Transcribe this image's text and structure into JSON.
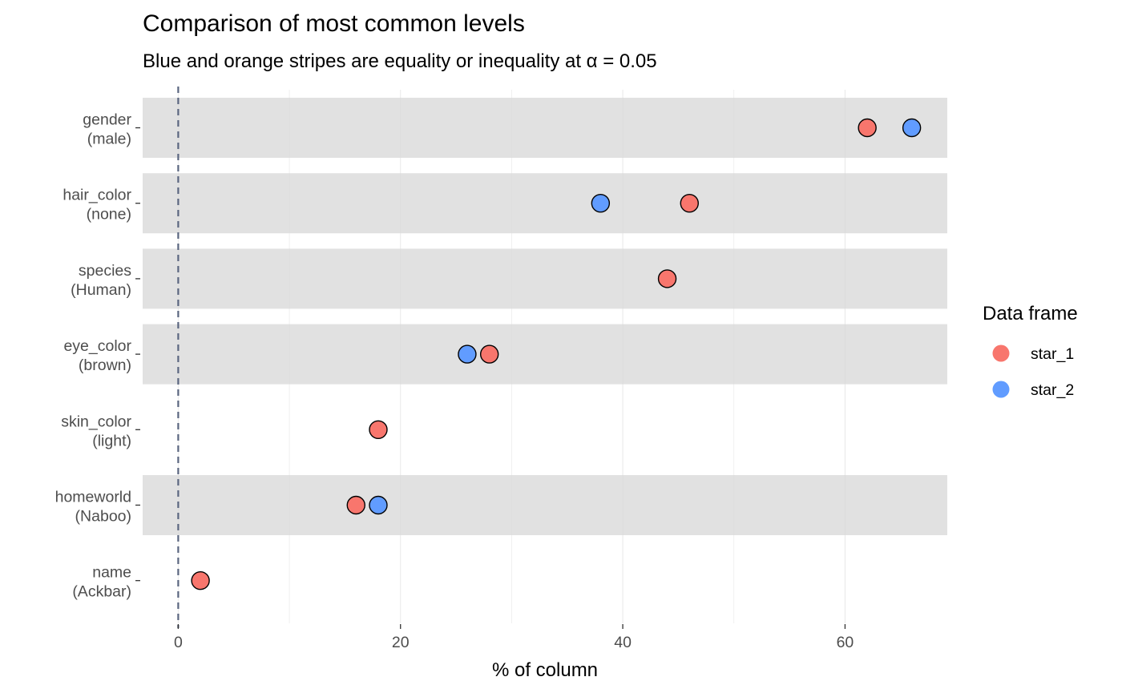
{
  "chart_data": {
    "type": "scatter",
    "title": "Comparison of most common levels",
    "subtitle": "Blue and orange stripes are equality or inequality at α = 0.05",
    "xlabel": "% of column",
    "ylabel": "",
    "xlim": [
      -3.2,
      69.2
    ],
    "x_ticks": [
      0,
      20,
      40,
      60
    ],
    "categories": [
      {
        "line1": "gender",
        "line2": "(male)"
      },
      {
        "line1": "hair_color",
        "line2": "(none)"
      },
      {
        "line1": "species",
        "line2": "(Human)"
      },
      {
        "line1": "eye_color",
        "line2": "(brown)"
      },
      {
        "line1": "skin_color",
        "line2": "(light)"
      },
      {
        "line1": "homeworld",
        "line2": "(Naboo)"
      },
      {
        "line1": "name",
        "line2": "(Ackbar)"
      }
    ],
    "stripes": [
      true,
      true,
      true,
      true,
      false,
      true,
      false
    ],
    "reference_line_x": 0,
    "series": [
      {
        "name": "star_1",
        "color": "#F8766D",
        "values": [
          62,
          46,
          44,
          28,
          18,
          16,
          2
        ]
      },
      {
        "name": "star_2",
        "color": "#619CFF",
        "values": [
          66,
          38,
          null,
          26,
          null,
          18,
          null
        ]
      }
    ],
    "legend": {
      "title": "Data frame",
      "placement": "right"
    },
    "grid": true,
    "stripe_color": "#e1e1e1",
    "grid_color": "#d9d9d9",
    "reference_line_color": "#5b6680"
  }
}
